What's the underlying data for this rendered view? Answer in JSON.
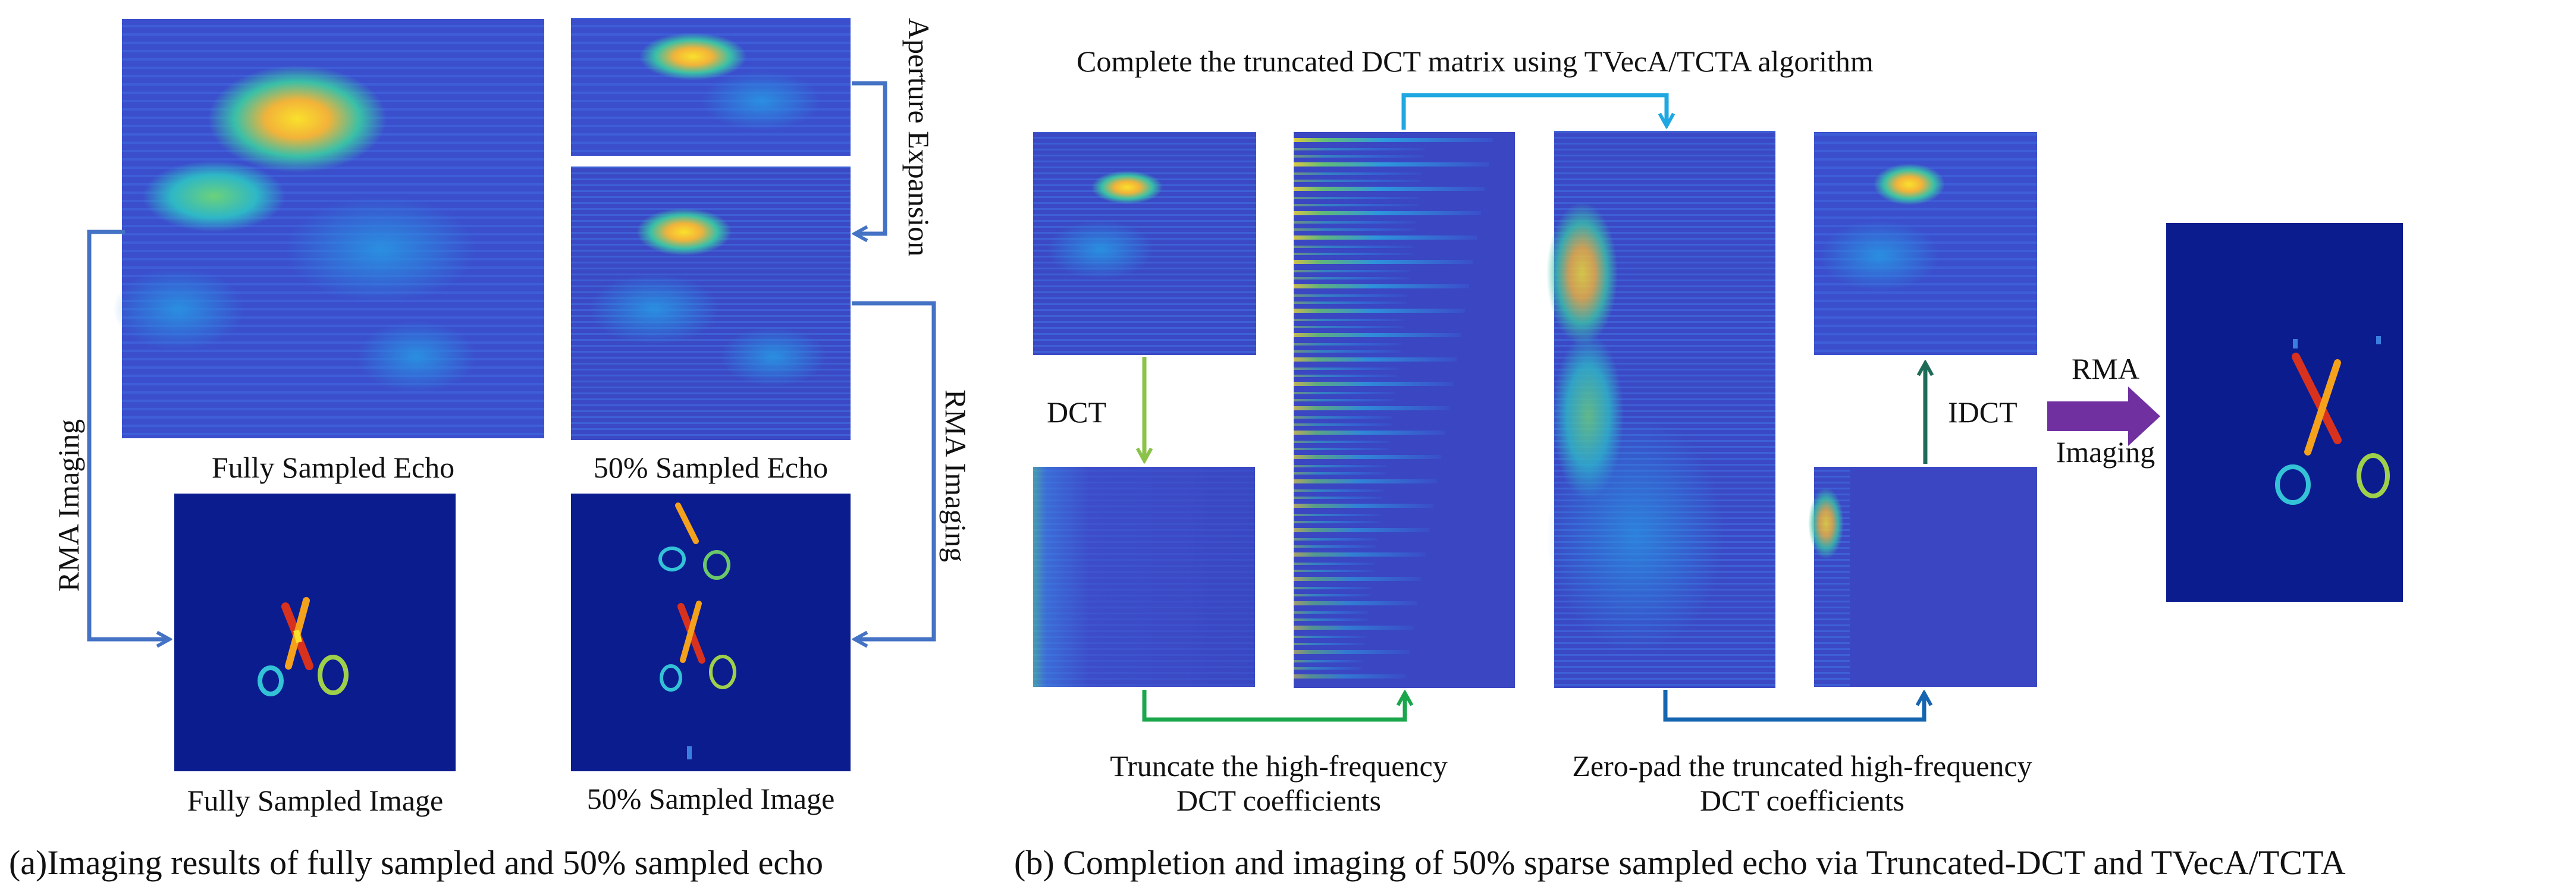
{
  "panel_a": {
    "labels": {
      "fully_sampled_echo": "Fully Sampled Echo",
      "half_sampled_echo": "50% Sampled Echo",
      "fully_sampled_image": "Fully Sampled Image",
      "half_sampled_image": "50% Sampled Image",
      "aperture_expansion": "Aperture Expansion",
      "rma_imaging_left": "RMA Imaging",
      "rma_imaging_right": "RMA Imaging"
    },
    "caption": "(a)Imaging results of fully sampled and 50% sampled echo"
  },
  "panel_b": {
    "labels": {
      "complete_title": "Complete the truncated DCT matrix using TVecA/TCTA algorithm",
      "dct": "DCT",
      "idct": "IDCT",
      "truncate_line1": "Truncate the high-frequency",
      "truncate_line2": "DCT coefficients",
      "zeropad_line1": "Zero-pad the truncated high-frequency",
      "zeropad_line2": "DCT coefficients",
      "rma": "RMA",
      "imaging": "Imaging"
    },
    "caption": "(b)  Completion and imaging of 50% sparse sampled echo via Truncated-DCT and TVecA/TCTA"
  },
  "colors": {
    "parula_bg": "#3a4ec9",
    "image_bg": "#0b1c8f",
    "arrow_blue": "#4472c4",
    "arrow_cyan": "#1ea7e1",
    "arrow_green_light": "#8bc34a",
    "arrow_green": "#1aa64a",
    "arrow_darkblue": "#1565b0",
    "arrow_teal": "#1e6b57",
    "arrow_purple": "#7030a0"
  }
}
